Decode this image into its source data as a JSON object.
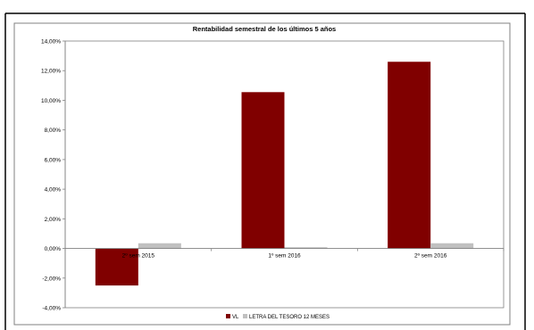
{
  "chart_data": {
    "type": "bar",
    "title": "Rentabilidad semestral de los últimos 5 años",
    "categories": [
      "2º sem 2015",
      "1º sem 2016",
      "2º sem 2016"
    ],
    "series": [
      {
        "name": "VL",
        "values": [
          -2.5,
          10.55,
          12.6
        ],
        "color": "#800000"
      },
      {
        "name": "LETRA DEL TESORO 12 MESES",
        "values": [
          0.35,
          0.08,
          0.35
        ],
        "color": "#c0c0c0"
      }
    ],
    "ylim": [
      -4,
      14
    ],
    "yticks": [
      "-4,00%",
      "-2,00%",
      "0,00%",
      "2,00%",
      "4,00%",
      "6,00%",
      "8,00%",
      "10,00%",
      "12,00%",
      "14,00%"
    ],
    "ytick_values": [
      -4,
      -2,
      0,
      2,
      4,
      6,
      8,
      10,
      12,
      14
    ],
    "grid": false,
    "legend_position": "bottom"
  }
}
